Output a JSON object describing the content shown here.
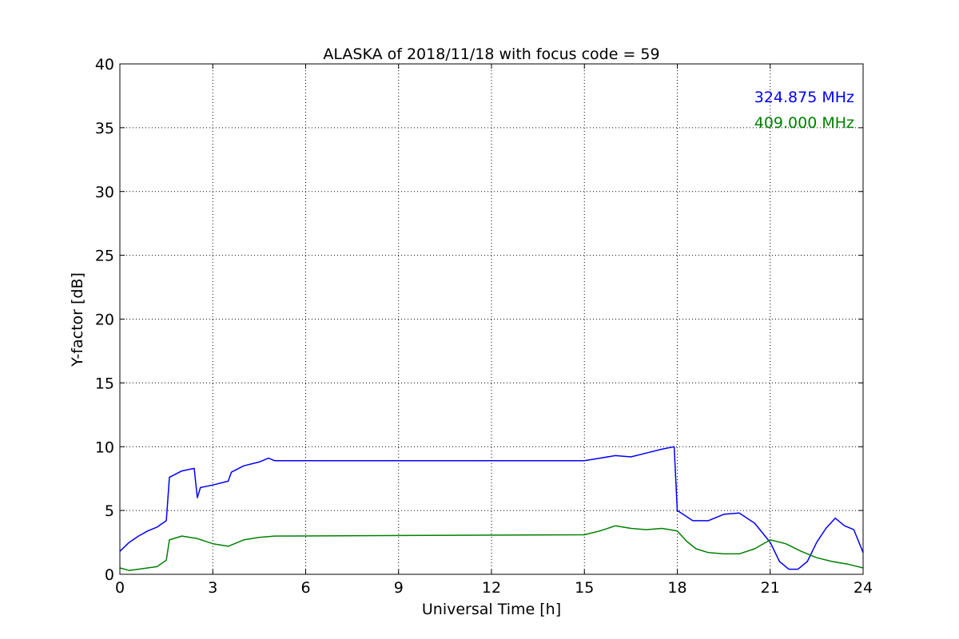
{
  "chart_data": {
    "type": "line",
    "title": "ALASKA of 2018/11/18 with focus code = 59",
    "xlabel": "Universal Time [h]",
    "ylabel": "Y-factor [dB]",
    "xlim": [
      0,
      24
    ],
    "ylim": [
      0,
      40
    ],
    "xticks": [
      0,
      3,
      6,
      9,
      12,
      15,
      18,
      21,
      24
    ],
    "yticks": [
      0,
      5,
      10,
      15,
      20,
      25,
      30,
      35,
      40
    ],
    "grid": true,
    "legend_placement": "top-right",
    "series": [
      {
        "name": "324.875 MHz",
        "color": "#0000ff",
        "x": [
          0,
          0.3,
          0.6,
          0.9,
          1.2,
          1.5,
          1.6,
          2.0,
          2.4,
          2.5,
          2.6,
          3.0,
          3.5,
          3.6,
          4.0,
          4.5,
          4.8,
          5.0,
          15.0,
          15.5,
          16.0,
          16.5,
          17.0,
          17.5,
          17.9,
          18.0,
          18.5,
          19.0,
          19.5,
          20.0,
          20.5,
          21.0,
          21.3,
          21.6,
          21.9,
          22.2,
          22.5,
          22.8,
          23.1,
          23.4,
          23.7,
          24.0
        ],
        "y": [
          1.8,
          2.5,
          3.0,
          3.4,
          3.7,
          4.2,
          7.6,
          8.1,
          8.3,
          6.0,
          6.8,
          7.0,
          7.3,
          8.0,
          8.5,
          8.8,
          9.1,
          8.9,
          8.9,
          9.1,
          9.3,
          9.2,
          9.5,
          9.8,
          10.0,
          5.0,
          4.2,
          4.2,
          4.7,
          4.8,
          4.0,
          2.5,
          1.0,
          0.4,
          0.4,
          1.0,
          2.5,
          3.6,
          4.4,
          3.8,
          3.5,
          1.7
        ]
      },
      {
        "name": "409.000 MHz",
        "color": "#008000",
        "x": [
          0,
          0.3,
          0.6,
          0.9,
          1.2,
          1.5,
          1.6,
          2.0,
          2.5,
          3.0,
          3.5,
          4.0,
          4.5,
          5.0,
          15.0,
          15.5,
          16.0,
          16.5,
          17.0,
          17.5,
          18.0,
          18.3,
          18.6,
          19.0,
          19.5,
          20.0,
          20.5,
          21.0,
          21.5,
          22.0,
          22.5,
          23.0,
          23.5,
          24.0
        ],
        "y": [
          0.5,
          0.3,
          0.4,
          0.5,
          0.6,
          1.1,
          2.7,
          3.0,
          2.8,
          2.4,
          2.2,
          2.7,
          2.9,
          3.0,
          3.1,
          3.4,
          3.8,
          3.6,
          3.5,
          3.6,
          3.4,
          2.6,
          2.0,
          1.7,
          1.6,
          1.6,
          2.0,
          2.7,
          2.4,
          1.8,
          1.3,
          1.0,
          0.8,
          0.5
        ]
      }
    ],
    "annotations": [
      {
        "text": "324.875 MHz",
        "color": "#0000ff"
      },
      {
        "text": "409.000 MHz",
        "color": "#008000"
      }
    ]
  }
}
